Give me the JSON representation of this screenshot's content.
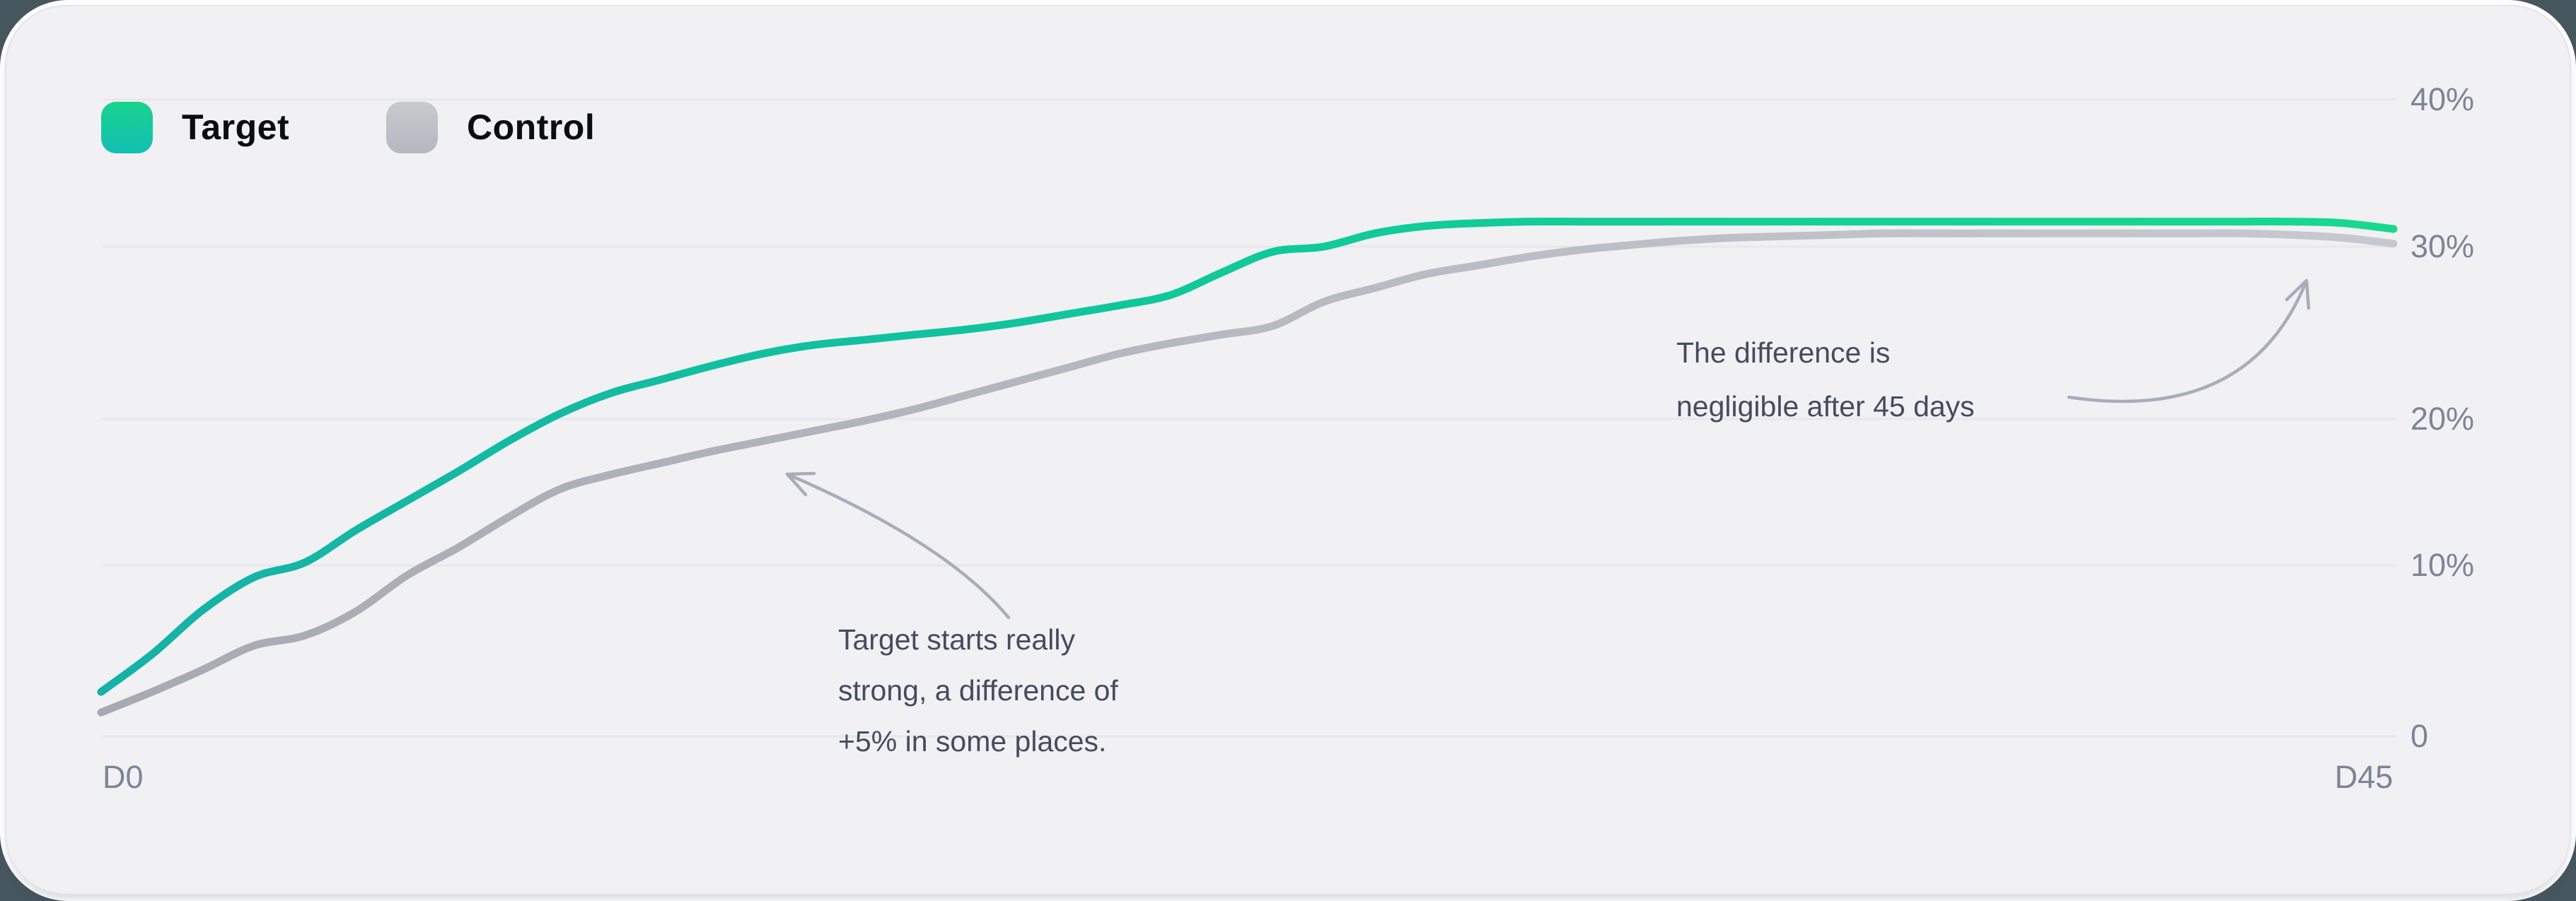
{
  "legend": {
    "items": [
      {
        "label": "Target",
        "swatch_top_color": "#19d38b",
        "swatch_bottom_color": "#12bfb4"
      },
      {
        "label": "Control",
        "swatch_top_color": "#c8cacf",
        "swatch_bottom_color": "#b4b7bf"
      }
    ]
  },
  "axes": {
    "y_labels": [
      "40%",
      "30%",
      "20%",
      "10%",
      "0"
    ],
    "x_labels": {
      "left": "D0",
      "right": "D45"
    }
  },
  "annotations": [
    {
      "lines": [
        "The difference is",
        "negligible after 45 days"
      ]
    },
    {
      "lines": [
        "Target starts really",
        "strong, a difference of",
        "+5% in some places."
      ]
    }
  ],
  "colors": {
    "card_background": "#f1f1f4",
    "window_rim": "#ffffff",
    "page_corner_background": "#46565e",
    "gridline": "#e8e8ec",
    "axis_label": "#7e8495",
    "annotation_text": "#464b5e",
    "annotation_arrow": "#a9adb9",
    "target_line_start": "#16b1a7",
    "target_line_end": "#17d98e",
    "control_line_start": "#a7aab2",
    "control_line_end": "#c8c9d0"
  },
  "chart_data": {
    "type": "line",
    "title": "",
    "xlabel": "",
    "ylabel": "",
    "x_unit": "day",
    "x_start": 0,
    "x_step": 1,
    "x_range": [
      0,
      45
    ],
    "ylim": [
      0,
      40
    ],
    "y_tick_labels": [
      "40%",
      "30%",
      "20%",
      "10%",
      "0"
    ],
    "grid": "horizontal",
    "legend_position": "top-left",
    "series": [
      {
        "name": "Target",
        "values": [
          2.6,
          4.8,
          7.4,
          9.3,
          10.2,
          12.4,
          14.4,
          16.4,
          18.5,
          20.3,
          21.5,
          22.3,
          23.1,
          23.8,
          24.3,
          24.6,
          24.9,
          25.2,
          25.6,
          26.1,
          26.6,
          27.2,
          28.5,
          29.7,
          30.0,
          30.9,
          31.4,
          31.6,
          31.7,
          31.7,
          31.7,
          31.7,
          31.7,
          31.7,
          31.7,
          31.7,
          31.7,
          31.7,
          31.7,
          31.7,
          31.7,
          31.7,
          31.7,
          31.7,
          31.6,
          31.2
        ]
      },
      {
        "name": "Control",
        "values": [
          1.4,
          2.6,
          3.9,
          5.3,
          5.9,
          7.3,
          9.4,
          11.2,
          13.3,
          15.2,
          16.2,
          17.0,
          17.8,
          18.5,
          19.2,
          19.9,
          20.6,
          21.4,
          22.2,
          23.0,
          23.8,
          24.4,
          24.9,
          25.4,
          26.8,
          27.6,
          28.4,
          28.9,
          29.4,
          29.8,
          30.1,
          30.4,
          30.6,
          30.7,
          30.8,
          30.9,
          30.9,
          30.9,
          30.9,
          30.9,
          30.9,
          30.9,
          30.9,
          30.8,
          30.6,
          30.2
        ]
      }
    ],
    "annotations": [
      {
        "text": "The difference is negligible after 45 days",
        "points_to": "end of curves near D45"
      },
      {
        "text": "Target starts really strong, a difference of +5% in some places.",
        "points_to": "gap between curves in first half"
      }
    ]
  }
}
